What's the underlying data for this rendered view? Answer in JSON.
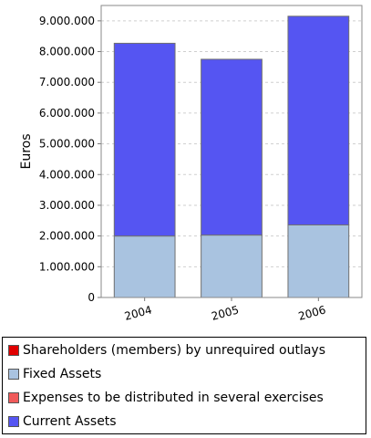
{
  "chart_data": {
    "type": "bar",
    "stacked": true,
    "categories": [
      "2004",
      "2005",
      "2006"
    ],
    "series": [
      {
        "name": "Shareholders (members) by unrequired outlays",
        "values": [
          0,
          0,
          0
        ],
        "color": "#e00000"
      },
      {
        "name": "Fixed Assets",
        "values": [
          2000000,
          2030000,
          2360000
        ],
        "color": "#a9c3e0"
      },
      {
        "name": "Expenses to be distributed in several exercises",
        "values": [
          0,
          0,
          0
        ],
        "color": "#f05a5a"
      },
      {
        "name": "Current Assets",
        "values": [
          6270000,
          5720000,
          6790000
        ],
        "color": "#5555f2"
      }
    ],
    "ylabel": "Euros",
    "xlabel": "",
    "ylim": [
      0,
      9500000
    ],
    "yticks": [
      0,
      1000000,
      2000000,
      3000000,
      4000000,
      5000000,
      6000000,
      7000000,
      8000000,
      9000000
    ],
    "ytick_labels": [
      "0",
      "1.000.000",
      "2.000.000",
      "3.000.000",
      "4.000.000",
      "5.000.000",
      "6.000.000",
      "7.000.000",
      "8.000.000",
      "9.000.000"
    ],
    "grid": true,
    "legend": "bottom"
  }
}
